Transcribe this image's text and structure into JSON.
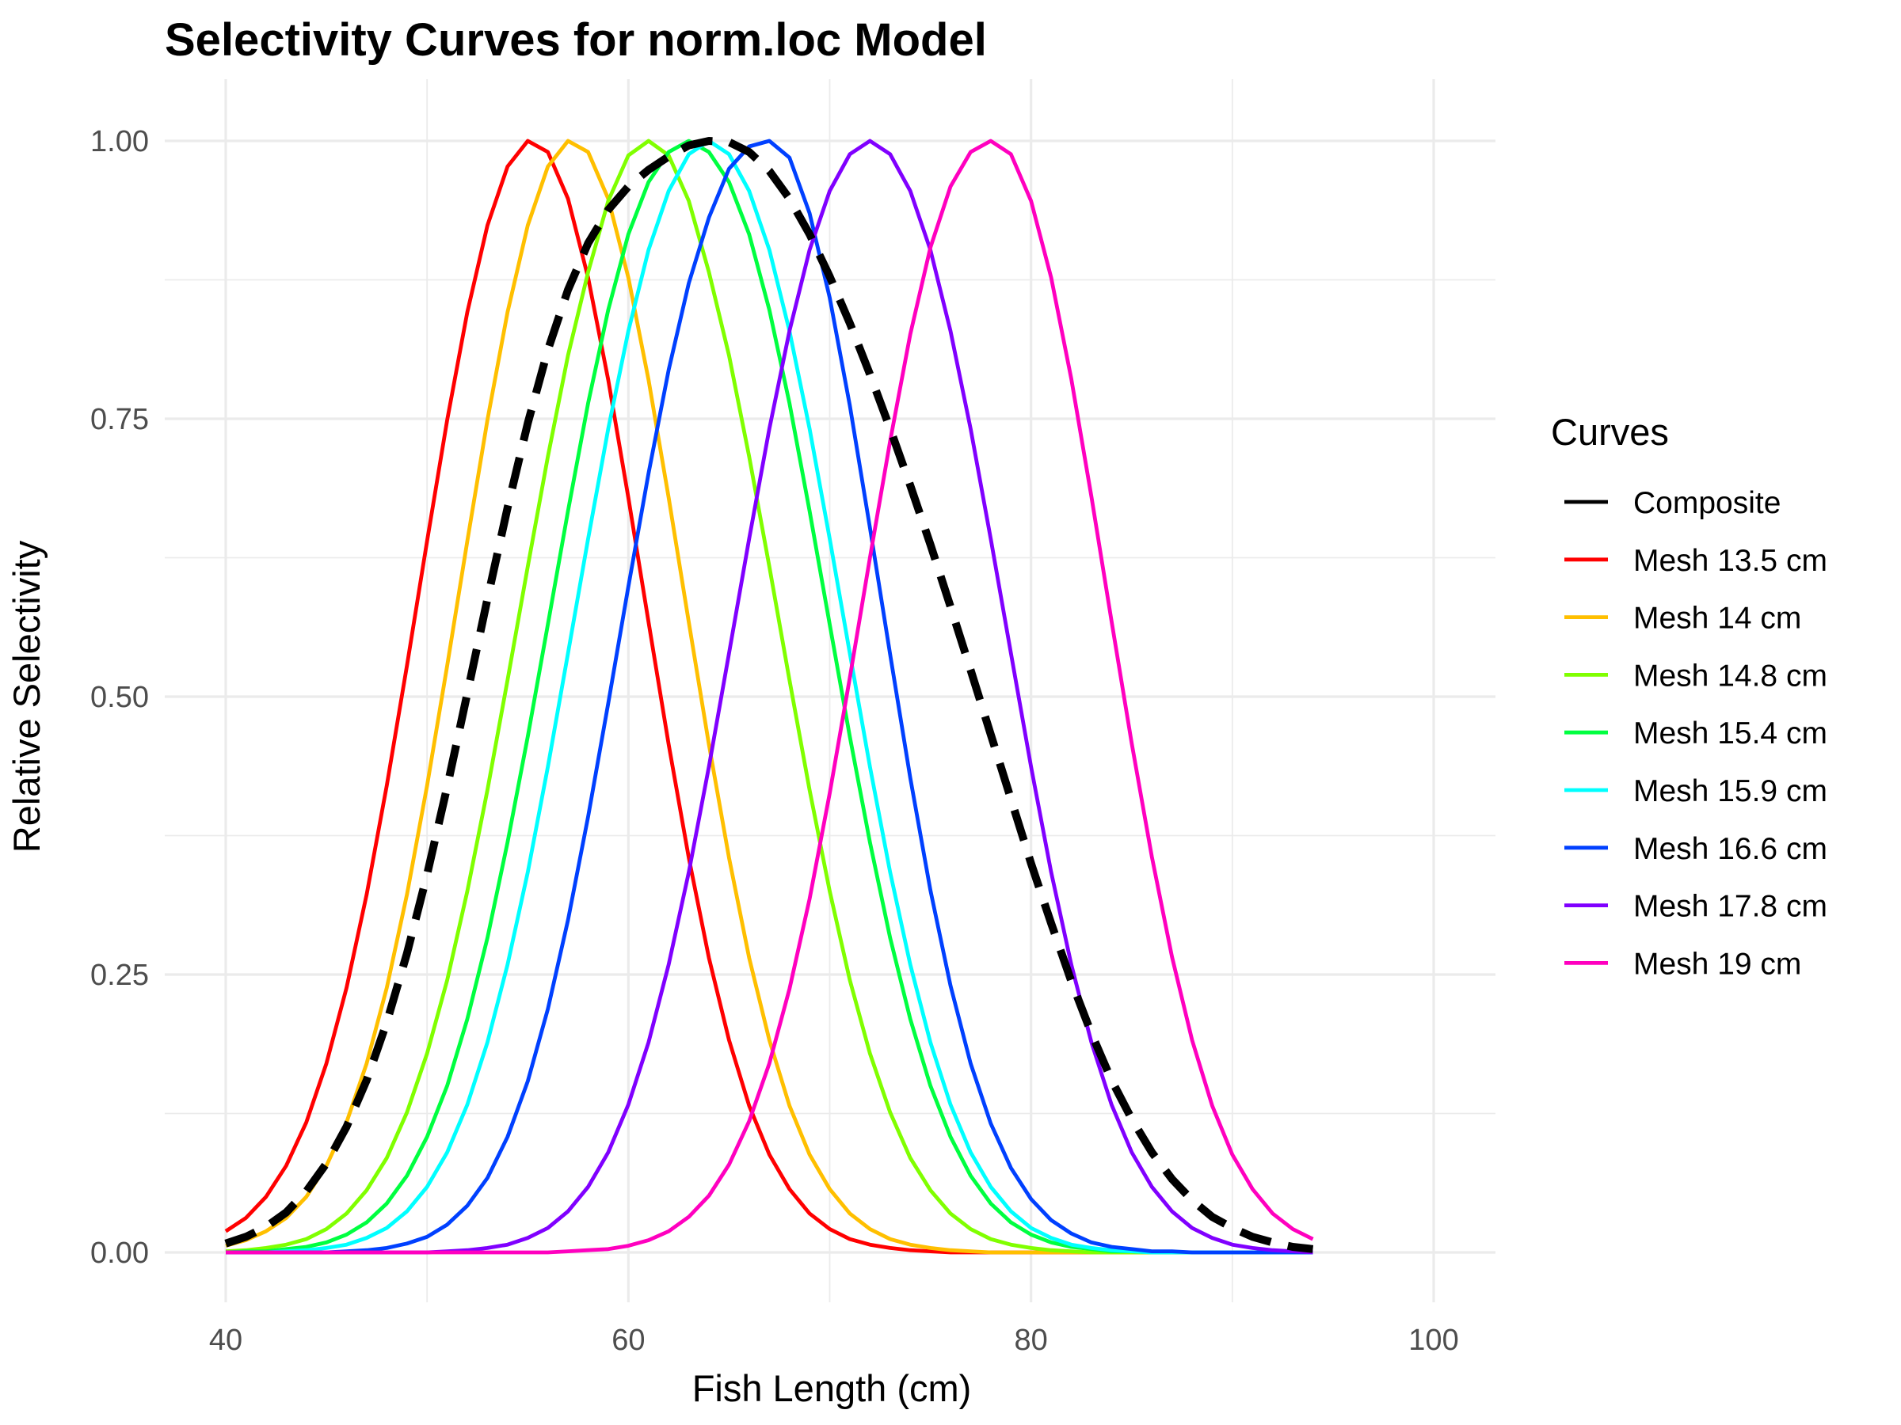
{
  "chart_data": {
    "type": "line",
    "title": "Selectivity Curves for norm.loc Model",
    "xlabel": "Fish Length (cm)",
    "ylabel": "Relative Selectivity",
    "xlim": [
      40,
      100
    ],
    "ylim": [
      0,
      1
    ],
    "x_ticks": [
      "40",
      "60",
      "80",
      "100"
    ],
    "y_ticks": [
      "0.00",
      "0.25",
      "0.50",
      "0.75",
      "1.00"
    ],
    "x_tick_values": [
      40,
      60,
      80,
      100
    ],
    "y_tick_values": [
      0,
      0.25,
      0.5,
      0.75,
      1.0
    ],
    "x_minor_values": [
      50,
      70,
      90
    ],
    "y_minor_values": [
      0.125,
      0.375,
      0.625,
      0.875
    ],
    "grid": true,
    "x_start": 40,
    "x_end": 94,
    "legend": {
      "title": "Curves",
      "position": "right",
      "entries": [
        "Composite",
        "Mesh 13.5 cm",
        "Mesh 14 cm",
        "Mesh 14.8 cm",
        "Mesh 15.4 cm",
        "Mesh 15.9 cm",
        "Mesh 16.6 cm",
        "Mesh 17.8 cm",
        "Mesh 19 cm"
      ]
    },
    "series": [
      {
        "name": "Composite",
        "color": "#000000",
        "dashed": true,
        "values": [
          0.008,
          0.014,
          0.023,
          0.036,
          0.055,
          0.08,
          0.113,
          0.155,
          0.207,
          0.269,
          0.34,
          0.419,
          0.503,
          0.588,
          0.67,
          0.746,
          0.812,
          0.866,
          0.908,
          0.938,
          0.959,
          0.974,
          0.986,
          0.996,
          1.0,
          0.999,
          0.99,
          0.973,
          0.948,
          0.916,
          0.878,
          0.836,
          0.79,
          0.741,
          0.69,
          0.637,
          0.581,
          0.524,
          0.466,
          0.408,
          0.35,
          0.296,
          0.244,
          0.197,
          0.155,
          0.12,
          0.09,
          0.066,
          0.047,
          0.032,
          0.022,
          0.014,
          0.009,
          0.005,
          0.003
        ]
      },
      {
        "name": "Mesh 13.5 cm",
        "color": "#ff0000",
        "dashed": false,
        "values": [
          0.019,
          0.031,
          0.05,
          0.078,
          0.117,
          0.17,
          0.238,
          0.322,
          0.42,
          0.528,
          0.64,
          0.749,
          0.846,
          0.924,
          0.977,
          1.0,
          0.99,
          0.948,
          0.877,
          0.785,
          0.679,
          0.567,
          0.457,
          0.355,
          0.265,
          0.191,
          0.132,
          0.088,
          0.057,
          0.035,
          0.021,
          0.012,
          0.007,
          0.004,
          0.002,
          0.001,
          0.0,
          0.0,
          0.0,
          0.0,
          0.0,
          0.0,
          0.0,
          0.0,
          0.0,
          0.0,
          0.0,
          0.0,
          0.0,
          0.0,
          0.0,
          0.0,
          0.0,
          0.0,
          0.0
        ]
      },
      {
        "name": "Mesh 14 cm",
        "color": "#ffbf00",
        "dashed": false,
        "values": [
          0.006,
          0.011,
          0.019,
          0.031,
          0.05,
          0.078,
          0.117,
          0.17,
          0.238,
          0.322,
          0.42,
          0.528,
          0.64,
          0.749,
          0.846,
          0.924,
          0.977,
          1.0,
          0.99,
          0.948,
          0.877,
          0.785,
          0.679,
          0.567,
          0.457,
          0.355,
          0.265,
          0.191,
          0.132,
          0.088,
          0.057,
          0.035,
          0.021,
          0.012,
          0.007,
          0.004,
          0.002,
          0.001,
          0.0,
          0.0,
          0.0,
          0.0,
          0.0,
          0.0,
          0.0,
          0.0,
          0.0,
          0.0,
          0.0,
          0.0,
          0.0,
          0.0,
          0.0,
          0.0,
          0.0
        ]
      },
      {
        "name": "Mesh 14.8 cm",
        "color": "#80ff00",
        "dashed": false,
        "values": [
          0.001,
          0.002,
          0.004,
          0.007,
          0.012,
          0.021,
          0.035,
          0.056,
          0.085,
          0.126,
          0.179,
          0.245,
          0.325,
          0.416,
          0.515,
          0.617,
          0.716,
          0.807,
          0.882,
          0.946,
          0.987,
          1.0,
          0.987,
          0.946,
          0.882,
          0.807,
          0.716,
          0.617,
          0.515,
          0.416,
          0.325,
          0.245,
          0.179,
          0.126,
          0.085,
          0.056,
          0.035,
          0.021,
          0.012,
          0.007,
          0.004,
          0.002,
          0.001,
          0.0,
          0.0,
          0.0,
          0.0,
          0.0,
          0.0,
          0.0,
          0.0,
          0.0,
          0.0,
          0.0,
          0.0
        ]
      },
      {
        "name": "Mesh 15.4 cm",
        "color": "#00ff40",
        "dashed": false,
        "values": [
          0.0,
          0.001,
          0.001,
          0.003,
          0.005,
          0.009,
          0.016,
          0.027,
          0.044,
          0.069,
          0.104,
          0.15,
          0.21,
          0.283,
          0.369,
          0.464,
          0.565,
          0.667,
          0.764,
          0.848,
          0.916,
          0.963,
          0.99,
          1.0,
          0.99,
          0.963,
          0.916,
          0.848,
          0.764,
          0.667,
          0.565,
          0.464,
          0.369,
          0.283,
          0.21,
          0.15,
          0.104,
          0.069,
          0.044,
          0.027,
          0.016,
          0.009,
          0.005,
          0.003,
          0.001,
          0.001,
          0.0,
          0.0,
          0.0,
          0.0,
          0.0,
          0.0,
          0.0,
          0.0,
          0.0
        ]
      },
      {
        "name": "Mesh 15.9 cm",
        "color": "#00ffff",
        "dashed": false,
        "values": [
          0.0,
          0.0,
          0.0,
          0.001,
          0.002,
          0.004,
          0.007,
          0.013,
          0.022,
          0.037,
          0.059,
          0.09,
          0.133,
          0.189,
          0.259,
          0.342,
          0.437,
          0.539,
          0.642,
          0.741,
          0.829,
          0.902,
          0.955,
          0.988,
          1.0,
          0.988,
          0.955,
          0.902,
          0.829,
          0.741,
          0.642,
          0.539,
          0.437,
          0.342,
          0.259,
          0.189,
          0.133,
          0.09,
          0.059,
          0.037,
          0.022,
          0.013,
          0.007,
          0.004,
          0.002,
          0.001,
          0.0,
          0.0,
          0.0,
          0.0,
          0.0,
          0.0,
          0.0,
          0.0,
          0.0
        ]
      },
      {
        "name": "Mesh 16.6 cm",
        "color": "#0040ff",
        "dashed": false,
        "values": [
          0.0,
          0.0,
          0.0,
          0.0,
          0.0,
          0.0,
          0.001,
          0.002,
          0.004,
          0.008,
          0.014,
          0.025,
          0.042,
          0.067,
          0.104,
          0.154,
          0.219,
          0.299,
          0.392,
          0.494,
          0.599,
          0.701,
          0.794,
          0.872,
          0.931,
          0.975,
          0.995,
          1.0,
          0.985,
          0.935,
          0.859,
          0.762,
          0.652,
          0.538,
          0.427,
          0.326,
          0.24,
          0.17,
          0.116,
          0.076,
          0.048,
          0.029,
          0.017,
          0.009,
          0.005,
          0.003,
          0.001,
          0.001,
          0.0,
          0.0,
          0.0,
          0.0,
          0.0,
          0.0,
          0.0
        ]
      },
      {
        "name": "Mesh 17.8 cm",
        "color": "#8000ff",
        "dashed": false,
        "values": [
          0.0,
          0.0,
          0.0,
          0.0,
          0.0,
          0.0,
          0.0,
          0.0,
          0.0,
          0.0,
          0.0,
          0.001,
          0.002,
          0.004,
          0.007,
          0.013,
          0.022,
          0.037,
          0.059,
          0.09,
          0.133,
          0.189,
          0.259,
          0.342,
          0.437,
          0.539,
          0.642,
          0.741,
          0.829,
          0.902,
          0.955,
          0.988,
          1.0,
          0.988,
          0.955,
          0.902,
          0.829,
          0.741,
          0.642,
          0.539,
          0.437,
          0.342,
          0.259,
          0.189,
          0.133,
          0.09,
          0.059,
          0.037,
          0.022,
          0.013,
          0.007,
          0.004,
          0.002,
          0.001,
          0.0
        ]
      },
      {
        "name": "Mesh 19 cm",
        "color": "#ff00bf",
        "dashed": false,
        "values": [
          0.0,
          0.0,
          0.0,
          0.0,
          0.0,
          0.0,
          0.0,
          0.0,
          0.0,
          0.0,
          0.0,
          0.0,
          0.0,
          0.0,
          0.0,
          0.0,
          0.0,
          0.001,
          0.002,
          0.003,
          0.006,
          0.011,
          0.019,
          0.032,
          0.051,
          0.079,
          0.118,
          0.17,
          0.237,
          0.318,
          0.413,
          0.517,
          0.625,
          0.73,
          0.826,
          0.904,
          0.959,
          0.99,
          1.0,
          0.988,
          0.946,
          0.877,
          0.786,
          0.68,
          0.568,
          0.458,
          0.356,
          0.266,
          0.191,
          0.132,
          0.088,
          0.057,
          0.035,
          0.021,
          0.012
        ]
      }
    ]
  }
}
